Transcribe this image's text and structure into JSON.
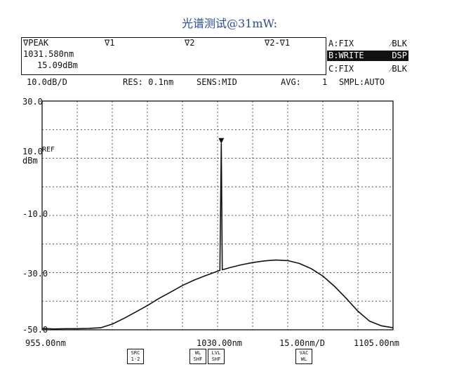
{
  "title": "光谱测试@31mW:",
  "marker_panel": {
    "peak_label": "∇PEAK",
    "marker1_label": "∇1",
    "marker2_label": "∇2",
    "delta_label": "∇2-∇1",
    "peak_wavelength": "1031.580nm",
    "peak_level": "15.09dBm"
  },
  "traces": [
    {
      "name": "A:FIX",
      "mode": "⁄BLK",
      "active": false
    },
    {
      "name": "B:WRITE",
      "mode": "DSP",
      "active": true
    },
    {
      "name": "C:FIX",
      "mode": "⁄BLK",
      "active": false
    }
  ],
  "status_bar": {
    "scale": "10.0dB/D",
    "resolution": "RES: 0.1nm",
    "sensitivity": "SENS:MID",
    "avg_label": "AVG:",
    "avg_value": "1",
    "sampling": "SMPL:AUTO"
  },
  "y_labels": {
    "top": "30.0",
    "ref_value": "10.0",
    "ref_tag": "REF",
    "unit": "dBm",
    "minus10": "-10.0",
    "minus30": "-30.0",
    "bottom": "-50.0"
  },
  "x_labels": {
    "start": "955.00nm",
    "center": "1030.00nm",
    "span": "15.00nm/D",
    "stop": "1105.00nm"
  },
  "softkeys": [
    {
      "line1": "SRC",
      "line2": "1-2"
    },
    {
      "line1": "WL",
      "line2": "SHF"
    },
    {
      "line1": "LVL",
      "line2": "SHF"
    },
    {
      "line1": "VAC",
      "line2": "WL"
    }
  ],
  "colors": {
    "title": "#2a4a9a",
    "trace": "#111111",
    "grid": "#555555"
  },
  "chart_data": {
    "type": "line",
    "x": [
      955,
      960,
      965,
      970,
      975,
      980,
      985,
      990,
      995,
      1000,
      1005,
      1010,
      1015,
      1020,
      1025,
      1029,
      1030,
      1031,
      1031.58,
      1032,
      1033,
      1035,
      1040,
      1045,
      1050,
      1055,
      1060,
      1065,
      1070,
      1075,
      1080,
      1085,
      1090,
      1095,
      1100,
      1105
    ],
    "series": [
      {
        "values": [
          -49.5,
          -49.7,
          -49.6,
          -49.6,
          -49.5,
          -49.3,
          -48.0,
          -46.0,
          -43.8,
          -41.5,
          -39.0,
          -36.8,
          -34.5,
          -32.6,
          -31.0,
          -29.8,
          -29.5,
          -29.2,
          15.09,
          -29.0,
          -28.8,
          -28.3,
          -27.3,
          -26.5,
          -25.9,
          -25.6,
          -25.8,
          -26.8,
          -28.6,
          -31.2,
          -34.8,
          -39.0,
          -43.5,
          -47.0,
          -48.6,
          -49.3
        ]
      }
    ],
    "marker": {
      "x": 1031.58,
      "y": 15.09
    },
    "xlim": [
      955,
      1105
    ],
    "ylim": [
      -50,
      30
    ],
    "grid": true,
    "x_divisions": 10,
    "y_divisions": 8
  }
}
